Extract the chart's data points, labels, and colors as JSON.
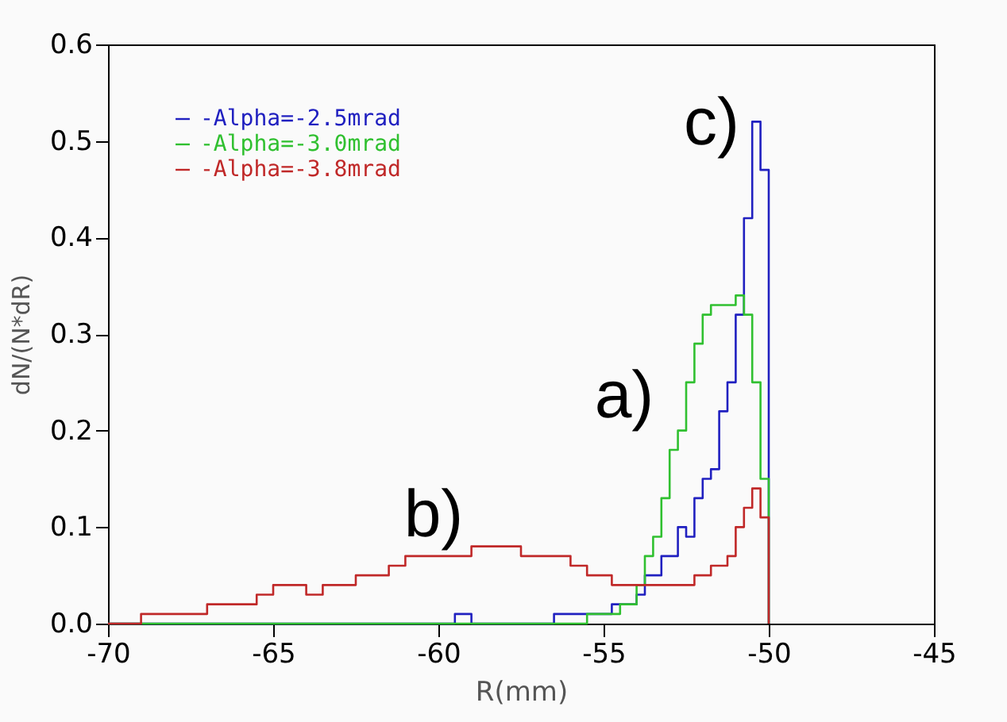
{
  "chart_data": {
    "type": "histogram",
    "xlabel": "R(mm)",
    "ylabel": "dN/(N*dR)",
    "bins": [
      -70,
      -69.5,
      -69,
      -68.5,
      -68,
      -67.5,
      -67,
      -66.5,
      -66,
      -65.5,
      -65,
      -64.5,
      -64,
      -63.5,
      -63,
      -62.5,
      -62,
      -61.5,
      -61,
      -60.5,
      -60,
      -59.5,
      -59,
      -58.5,
      -58,
      -57.5,
      -57,
      -56.5,
      -56,
      -55.5,
      -55,
      -54.75,
      -54.5,
      -54.25,
      -54,
      -53.75,
      -53.5,
      -53.25,
      -53,
      -52.75,
      -52.5,
      -52.25,
      -52,
      -51.75,
      -51.5,
      -51.25,
      -51,
      -50.75,
      -50.5,
      -50.25,
      -50
    ],
    "series": [
      {
        "name": "-Alpha=-2.5mrad",
        "color": "#2020c0",
        "values": [
          0,
          0,
          0,
          0,
          0,
          0,
          0,
          0,
          0,
          0,
          0,
          0,
          0,
          0,
          0,
          0,
          0,
          0,
          0,
          0,
          0,
          0.01,
          0,
          0,
          0,
          0,
          0,
          0.01,
          0.01,
          0.01,
          0.01,
          0.02,
          0.02,
          0.02,
          0.03,
          0.05,
          0.05,
          0.07,
          0.07,
          0.1,
          0.09,
          0.13,
          0.15,
          0.16,
          0.22,
          0.25,
          0.32,
          0.42,
          0.52,
          0.47
        ]
      },
      {
        "name": "-Alpha=-3.0mrad",
        "color": "#30c030",
        "values": [
          0,
          0,
          0,
          0,
          0,
          0,
          0,
          0,
          0,
          0,
          0,
          0,
          0,
          0,
          0,
          0,
          0,
          0,
          0,
          0,
          0,
          0,
          0,
          0,
          0,
          0,
          0,
          0,
          0,
          0.01,
          0.01,
          0.01,
          0.02,
          0.02,
          0.04,
          0.07,
          0.09,
          0.13,
          0.18,
          0.2,
          0.25,
          0.29,
          0.32,
          0.33,
          0.33,
          0.33,
          0.34,
          0.32,
          0.25,
          0.15
        ]
      },
      {
        "name": "-Alpha=-3.8mrad",
        "color": "#c02828",
        "values": [
          0,
          0,
          0.01,
          0.01,
          0.01,
          0.01,
          0.02,
          0.02,
          0.02,
          0.03,
          0.04,
          0.04,
          0.03,
          0.04,
          0.04,
          0.05,
          0.05,
          0.06,
          0.07,
          0.07,
          0.07,
          0.07,
          0.08,
          0.08,
          0.08,
          0.07,
          0.07,
          0.07,
          0.06,
          0.05,
          0.05,
          0.04,
          0.04,
          0.04,
          0.04,
          0.04,
          0.04,
          0.04,
          0.04,
          0.04,
          0.04,
          0.05,
          0.05,
          0.06,
          0.06,
          0.07,
          0.1,
          0.12,
          0.14,
          0.11
        ]
      }
    ],
    "xlim": [
      -70,
      -45
    ],
    "xticks": [
      -70,
      -65,
      -60,
      -55,
      -50,
      -45
    ],
    "ylim": [
      0,
      0.6
    ],
    "yticks": [
      {
        "value": 0,
        "label": "0.0"
      },
      {
        "value": 0.1,
        "label": "0.1"
      },
      {
        "value": 0.2,
        "label": "0.2"
      },
      {
        "value": 0.3,
        "label": "0.3"
      },
      {
        "value": 0.4,
        "label": "0.4"
      },
      {
        "value": 0.5,
        "label": "0.5"
      },
      {
        "value": 0.6,
        "label": "0.6"
      }
    ],
    "annotations": [
      "a)",
      "b)",
      "c)"
    ],
    "legend": "top left",
    "grid": false
  }
}
